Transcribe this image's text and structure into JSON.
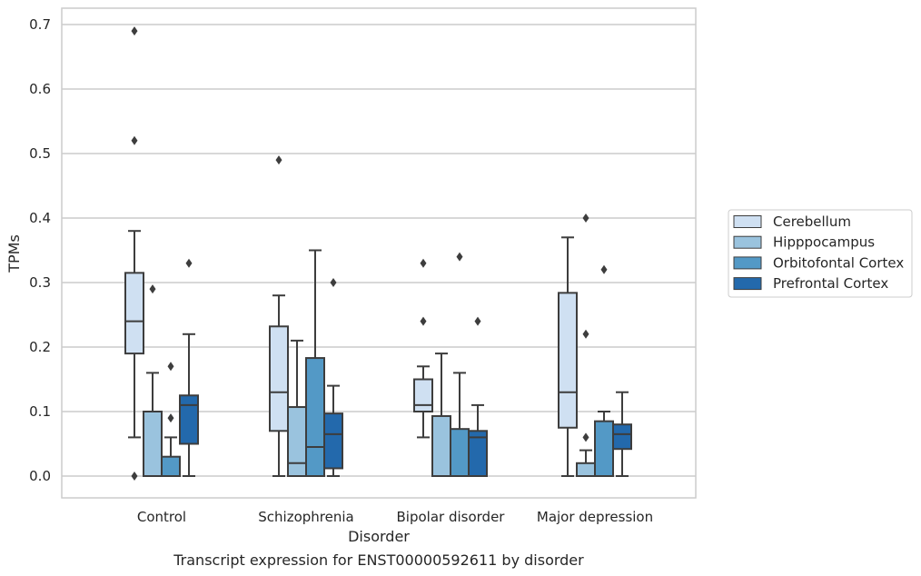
{
  "caption": "Transcript expression for ENST00000592611 by disorder",
  "chart_data": {
    "type": "box",
    "xlabel": "Disorder",
    "ylabel": "TPMs",
    "ylim": [
      -0.034,
      0.726
    ],
    "yticks": [
      0.0,
      0.1,
      0.2,
      0.3,
      0.4,
      0.5,
      0.6,
      0.7
    ],
    "ytick_labels": [
      "0.0",
      "0.1",
      "0.2",
      "0.3",
      "0.4",
      "0.5",
      "0.6",
      "0.7"
    ],
    "grid": true,
    "legend_position": "right",
    "categories": [
      "Control",
      "Schizophrenia",
      "Bipolar disorder",
      "Major depression"
    ],
    "series": [
      {
        "name": "Cerebellum",
        "color": "#cfe0f2",
        "boxes": [
          {
            "whislo": 0.06,
            "q1": 0.19,
            "med": 0.24,
            "q3": 0.315,
            "whishi": 0.38,
            "fliers": [
              0.0,
              0.52,
              0.69
            ]
          },
          {
            "whislo": 0.0,
            "q1": 0.07,
            "med": 0.13,
            "q3": 0.232,
            "whishi": 0.28,
            "fliers": [
              0.49
            ]
          },
          {
            "whislo": 0.06,
            "q1": 0.1,
            "med": 0.11,
            "q3": 0.15,
            "whishi": 0.17,
            "fliers": [
              0.24,
              0.33
            ]
          },
          {
            "whislo": 0.0,
            "q1": 0.075,
            "med": 0.13,
            "q3": 0.284,
            "whishi": 0.37,
            "fliers": []
          }
        ]
      },
      {
        "name": "Hipppocampus",
        "color": "#9ac3de",
        "boxes": [
          {
            "whislo": 0.0,
            "q1": 0.0,
            "med": 0.0,
            "q3": 0.1,
            "whishi": 0.16,
            "fliers": [
              0.29
            ]
          },
          {
            "whislo": 0.0,
            "q1": 0.0,
            "med": 0.02,
            "q3": 0.107,
            "whishi": 0.21,
            "fliers": []
          },
          {
            "whislo": 0.0,
            "q1": 0.0,
            "med": 0.0,
            "q3": 0.093,
            "whishi": 0.19,
            "fliers": []
          },
          {
            "whislo": 0.0,
            "q1": 0.0,
            "med": 0.0,
            "q3": 0.02,
            "whishi": 0.04,
            "fliers": [
              0.06,
              0.22,
              0.4
            ]
          }
        ]
      },
      {
        "name": "Orbitofontal Cortex",
        "color": "#5399c6",
        "boxes": [
          {
            "whislo": 0.0,
            "q1": 0.0,
            "med": 0.0,
            "q3": 0.03,
            "whishi": 0.06,
            "fliers": [
              0.09,
              0.17
            ]
          },
          {
            "whislo": 0.0,
            "q1": 0.0,
            "med": 0.045,
            "q3": 0.183,
            "whishi": 0.35,
            "fliers": []
          },
          {
            "whislo": 0.0,
            "q1": 0.0,
            "med": 0.0,
            "q3": 0.073,
            "whishi": 0.16,
            "fliers": [
              0.34
            ]
          },
          {
            "whislo": 0.0,
            "q1": 0.0,
            "med": 0.0,
            "q3": 0.085,
            "whishi": 0.1,
            "fliers": [
              0.32
            ]
          }
        ]
      },
      {
        "name": "Prefrontal Cortex",
        "color": "#2369ac",
        "boxes": [
          {
            "whislo": 0.0,
            "q1": 0.05,
            "med": 0.11,
            "q3": 0.125,
            "whishi": 0.22,
            "fliers": [
              0.33
            ]
          },
          {
            "whislo": 0.0,
            "q1": 0.012,
            "med": 0.065,
            "q3": 0.097,
            "whishi": 0.14,
            "fliers": [
              0.3
            ]
          },
          {
            "whislo": 0.0,
            "q1": 0.0,
            "med": 0.06,
            "q3": 0.07,
            "whishi": 0.11,
            "fliers": [
              0.24
            ]
          },
          {
            "whislo": 0.0,
            "q1": 0.042,
            "med": 0.065,
            "q3": 0.08,
            "whishi": 0.13,
            "fliers": []
          }
        ]
      }
    ]
  }
}
